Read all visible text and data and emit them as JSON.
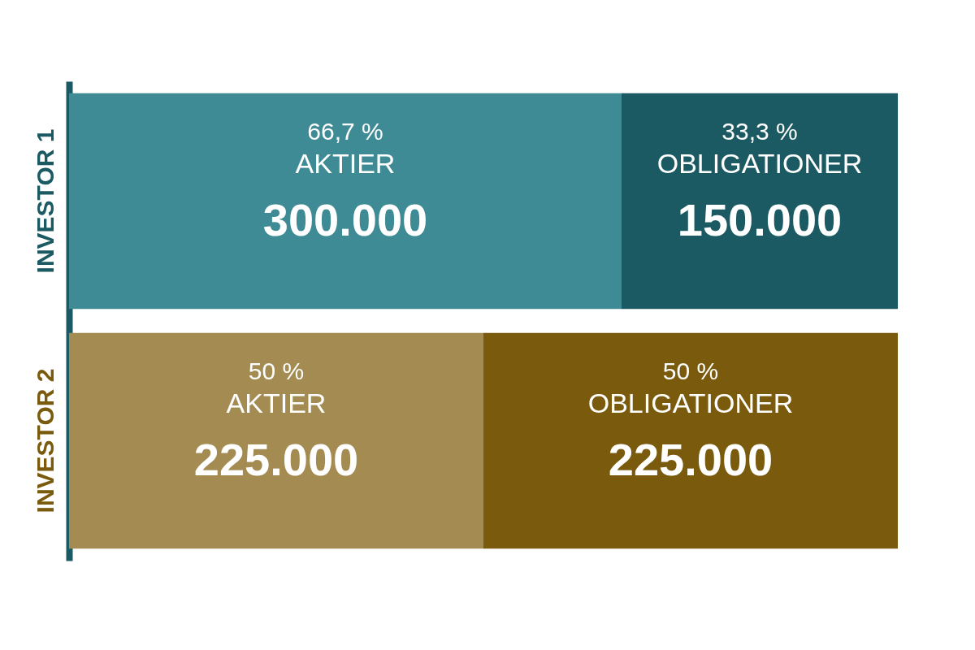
{
  "chart_data": {
    "type": "bar",
    "orientation": "horizontal",
    "stacked": true,
    "grid": false,
    "categories": [
      "INVESTOR 1",
      "INVESTOR 2"
    ],
    "series": [
      {
        "name": "AKTIER",
        "colors": [
          "#3f8b95",
          "#a38b52"
        ],
        "values": [
          300000,
          225000
        ],
        "value_labels": [
          "300.000",
          "225.000"
        ]
      },
      {
        "name": "OBLIGATIONER",
        "colors": [
          "#1b5a62",
          "#7a5a0c"
        ],
        "values": [
          150000,
          225000
        ],
        "value_labels": [
          "150.000",
          "225.000"
        ]
      }
    ],
    "annotations": [
      "66,7 %",
      "33,3 %",
      "50 %",
      "50 %"
    ]
  }
}
